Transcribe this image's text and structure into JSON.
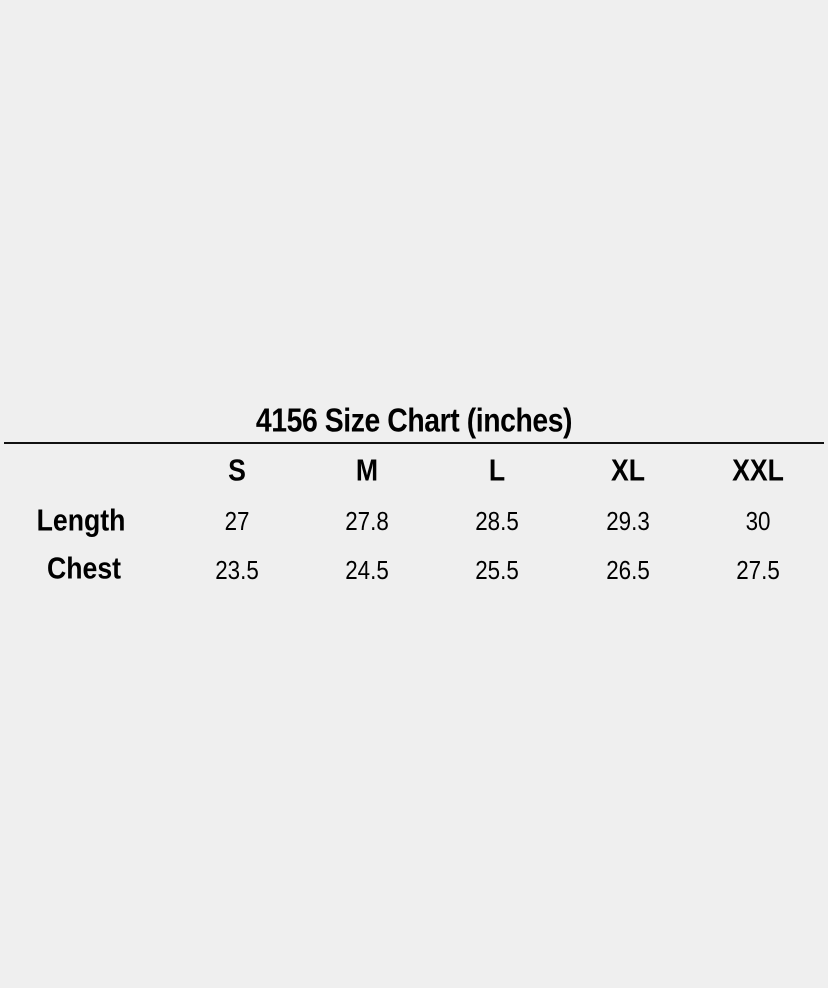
{
  "title": "4156 Size Chart (inches)",
  "columns": [
    "S",
    "M",
    "L",
    "XL",
    "XXL"
  ],
  "rows": [
    {
      "label": "Length",
      "values": [
        "27",
        "27.8",
        "28.5",
        "29.3",
        "30"
      ]
    },
    {
      "label": "Chest",
      "values": [
        "23.5",
        "24.5",
        "25.5",
        "26.5",
        "27.5"
      ]
    }
  ]
}
